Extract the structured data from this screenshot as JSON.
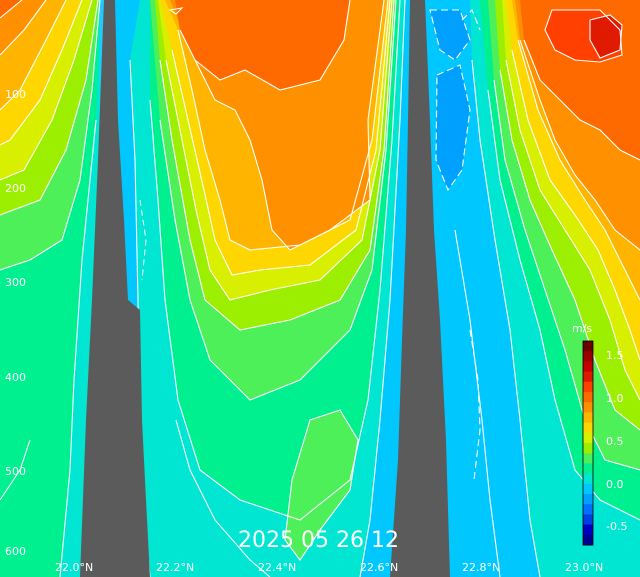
{
  "timestamp": "2025 05 26 12",
  "depth_ticks": [
    "100",
    "200",
    "300",
    "400",
    "500",
    "600"
  ],
  "lat_ticks": [
    "22.0°N",
    "22.2°N",
    "22.4°N",
    "22.6°N",
    "22.8°N",
    "23.0°N"
  ],
  "colorbar": {
    "units": "m/s",
    "ticks": [
      "1.5",
      "1.0",
      "0.5",
      "0.0",
      "-0.5"
    ],
    "colors": [
      "#6b0000",
      "#9a0000",
      "#c40000",
      "#e01a00",
      "#ff4000",
      "#ff6a00",
      "#ff9000",
      "#ffb400",
      "#ffd700",
      "#d8ef00",
      "#9cef00",
      "#4ef05a",
      "#00f090",
      "#00e6d2",
      "#00c8ff",
      "#00a0ff",
      "#0070ff",
      "#0040e0",
      "#0000c0",
      "#000090"
    ]
  },
  "colors": {
    "topography": "#5b5b5b",
    "background": "#00c8ff"
  }
}
